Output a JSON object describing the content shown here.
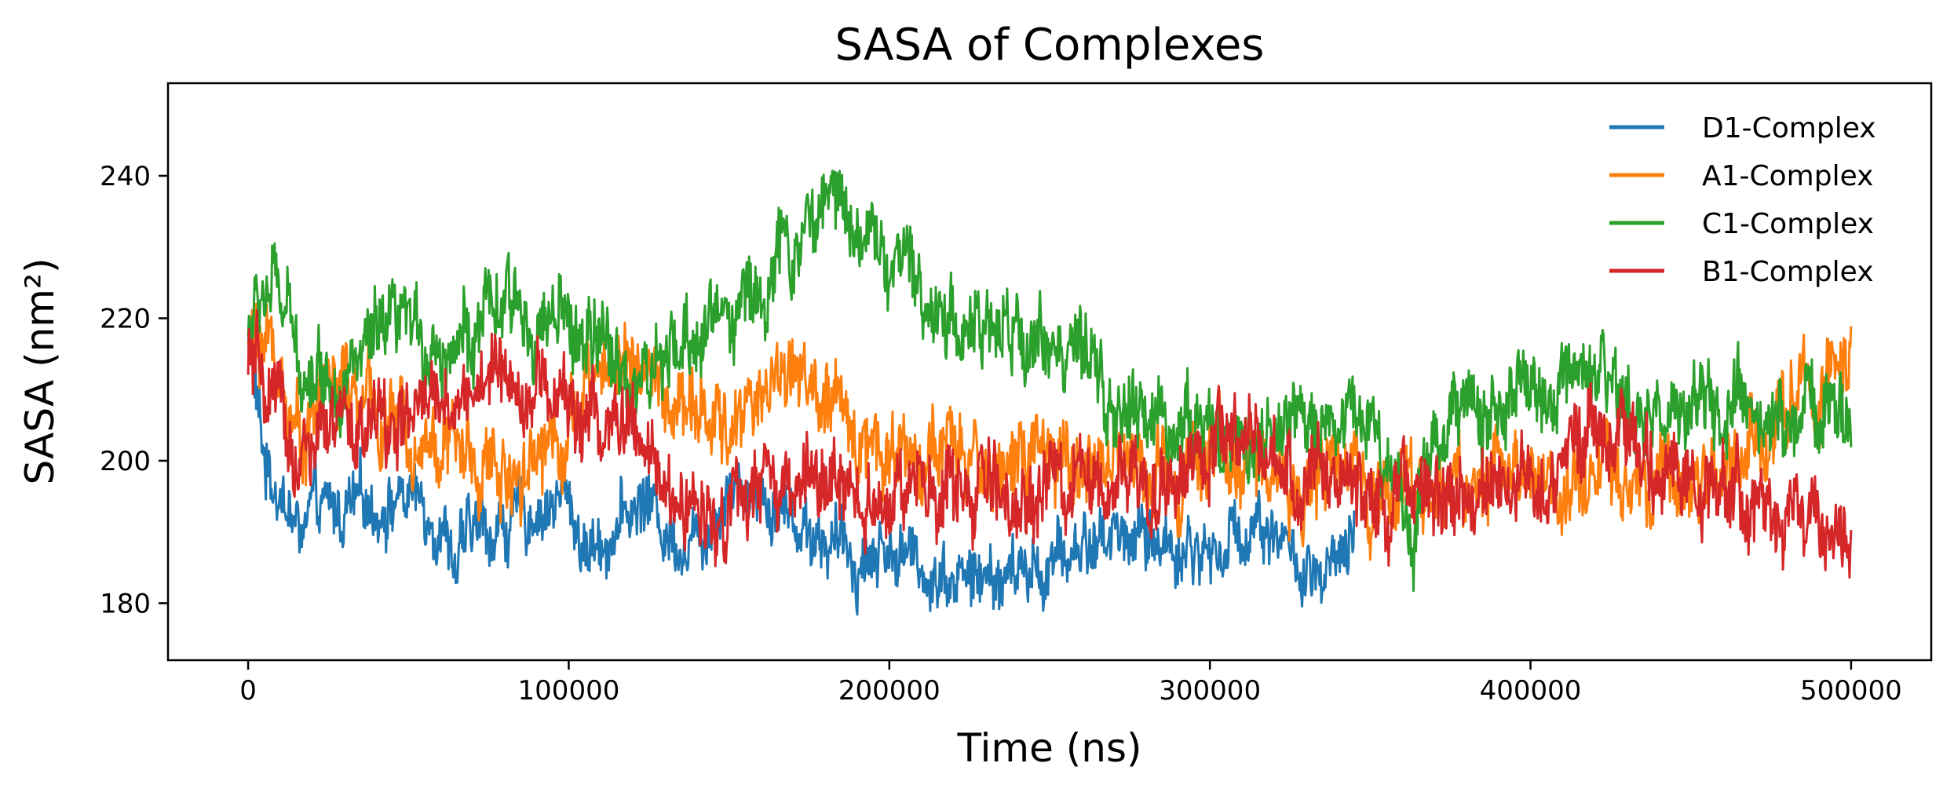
{
  "chart_data": {
    "type": "line",
    "title": "SASA of Complexes",
    "xlabel": "Time (ns)",
    "ylabel": "SASA (nm²)",
    "xlim": [
      -25000,
      525000
    ],
    "ylim": [
      172,
      253
    ],
    "xticks": [
      0,
      100000,
      200000,
      300000,
      400000,
      500000
    ],
    "xtick_labels": [
      "0",
      "100000",
      "200000",
      "300000",
      "400000",
      "500000"
    ],
    "yticks": [
      180,
      200,
      220,
      240
    ],
    "ytick_labels": [
      "180",
      "200",
      "220",
      "240"
    ],
    "grid": false,
    "legend_position": "top-right",
    "series": [
      {
        "name": "D1-Complex",
        "color": "#1f77b4",
        "x": [
          0,
          5000,
          10000,
          15000,
          20000,
          30000,
          40000,
          50000,
          60000,
          65000,
          70000,
          80000,
          90000,
          100000,
          105000,
          110000,
          120000,
          125000,
          130000,
          140000,
          150000,
          160000,
          170000,
          180000,
          190000,
          200000,
          210000,
          220000,
          230000,
          240000,
          250000,
          260000,
          270000,
          280000,
          290000,
          300000,
          305000,
          310000,
          315000,
          320000,
          325000,
          330000,
          335000,
          340000,
          345000
        ],
        "y": [
          218,
          200,
          196,
          190,
          192,
          193,
          194,
          195,
          192,
          186,
          190,
          191,
          193,
          195,
          187,
          189,
          193,
          195,
          190,
          189,
          197,
          196,
          192,
          189,
          186,
          188,
          185,
          184,
          183,
          184,
          185,
          188,
          190,
          189,
          188,
          187,
          188,
          190,
          192,
          191,
          187,
          183,
          182,
          185,
          187
        ],
        "amplitude": 4
      },
      {
        "name": "A1-Complex",
        "color": "#ff7f0e",
        "x": [
          0,
          5000,
          10000,
          15000,
          20000,
          25000,
          30000,
          40000,
          50000,
          60000,
          70000,
          80000,
          90000,
          100000,
          110000,
          120000,
          130000,
          140000,
          150000,
          160000,
          170000,
          180000,
          190000,
          200000,
          210000,
          220000,
          230000,
          240000,
          250000,
          260000,
          270000,
          280000,
          290000,
          300000,
          310000,
          320000,
          330000,
          340000,
          350000,
          360000,
          370000,
          380000,
          390000,
          400000,
          410000,
          420000,
          430000,
          440000,
          450000,
          460000,
          470000,
          480000,
          490000,
          500000
        ],
        "y": [
          216,
          218,
          212,
          204,
          206,
          212,
          210,
          206,
          204,
          203,
          200,
          198,
          202,
          205,
          213,
          215,
          208,
          206,
          204,
          210,
          214,
          207,
          204,
          202,
          201,
          200,
          199,
          200,
          199,
          200,
          200,
          199,
          200,
          202,
          200,
          198,
          197,
          198,
          197,
          196,
          196,
          197,
          198,
          198,
          197,
          200,
          196,
          195,
          197,
          198,
          202,
          208,
          212,
          214
        ],
        "amplitude": 5
      },
      {
        "name": "C1-Complex",
        "color": "#2ca02c",
        "x": [
          0,
          5000,
          10000,
          15000,
          20000,
          30000,
          40000,
          50000,
          60000,
          70000,
          80000,
          90000,
          100000,
          110000,
          120000,
          130000,
          140000,
          150000,
          160000,
          170000,
          180000,
          185000,
          190000,
          200000,
          210000,
          220000,
          230000,
          240000,
          250000,
          260000,
          270000,
          280000,
          290000,
          300000,
          310000,
          320000,
          330000,
          340000,
          350000,
          360000,
          363000,
          370000,
          380000,
          390000,
          400000,
          410000,
          420000,
          430000,
          440000,
          450000,
          460000,
          470000,
          480000,
          490000,
          500000
        ],
        "y": [
          218,
          224,
          223,
          215,
          213,
          212,
          216,
          218,
          216,
          218,
          221,
          220,
          218,
          216,
          212,
          212,
          218,
          222,
          224,
          230,
          236,
          238,
          234,
          228,
          224,
          220,
          218,
          217,
          218,
          213,
          207,
          205,
          206,
          204,
          203,
          203,
          205,
          207,
          206,
          196,
          189,
          205,
          207,
          208,
          209,
          208,
          210,
          207,
          206,
          206,
          206,
          206,
          205,
          208,
          207
        ],
        "amplitude": 5
      },
      {
        "name": "B1-Complex",
        "color": "#d62728",
        "x": [
          0,
          5000,
          10000,
          15000,
          20000,
          30000,
          40000,
          50000,
          60000,
          70000,
          80000,
          90000,
          100000,
          110000,
          120000,
          130000,
          140000,
          150000,
          160000,
          170000,
          180000,
          190000,
          200000,
          210000,
          220000,
          230000,
          240000,
          250000,
          260000,
          270000,
          280000,
          290000,
          300000,
          310000,
          320000,
          330000,
          340000,
          350000,
          360000,
          370000,
          380000,
          390000,
          400000,
          410000,
          420000,
          430000,
          440000,
          450000,
          460000,
          470000,
          480000,
          490000,
          500000
        ],
        "y": [
          214,
          210,
          206,
          200,
          202,
          204,
          205,
          205,
          208,
          210,
          213,
          210,
          208,
          205,
          204,
          195,
          193,
          194,
          195,
          196,
          196,
          196,
          195,
          195,
          195,
          195,
          195,
          196,
          196,
          197,
          198,
          199,
          200,
          202,
          199,
          197,
          197,
          196,
          196,
          195,
          195,
          196,
          197,
          200,
          204,
          202,
          200,
          197,
          196,
          196,
          192,
          190,
          190
        ],
        "amplitude": 5
      }
    ]
  }
}
